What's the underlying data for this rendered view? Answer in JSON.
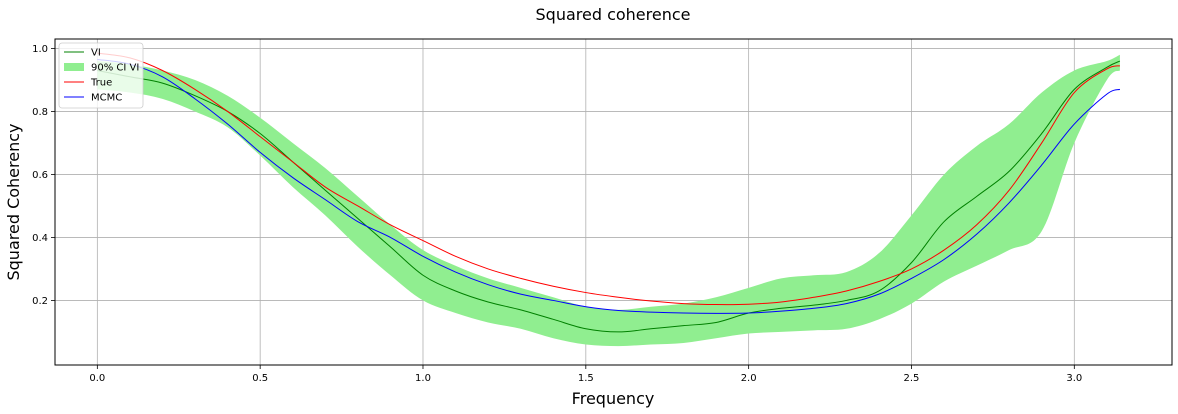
{
  "chart_data": {
    "type": "line",
    "title": "Squared coherence",
    "xlabel": "Frequency",
    "ylabel": "Squared Coherency",
    "xlim": [
      -0.13,
      3.3
    ],
    "ylim": [
      -0.005,
      1.03
    ],
    "x_ticks": [
      0.0,
      0.5,
      1.0,
      1.5,
      2.0,
      2.5,
      3.0
    ],
    "x_tick_labels": [
      "0.0",
      "0.5",
      "1.0",
      "1.5",
      "2.0",
      "2.5",
      "3.0"
    ],
    "y_ticks": [
      0.2,
      0.4,
      0.6,
      0.8,
      1.0
    ],
    "y_tick_labels": [
      "0.2",
      "0.4",
      "0.6",
      "0.8",
      "1.0"
    ],
    "grid": true,
    "legend_position": "upper-left",
    "x": [
      0.0,
      0.1,
      0.2,
      0.3,
      0.4,
      0.5,
      0.6,
      0.7,
      0.8,
      0.9,
      1.0,
      1.1,
      1.2,
      1.3,
      1.4,
      1.5,
      1.6,
      1.7,
      1.8,
      1.9,
      2.0,
      2.1,
      2.2,
      2.3,
      2.4,
      2.5,
      2.6,
      2.7,
      2.8,
      2.9,
      3.0,
      3.1,
      3.14
    ],
    "series": [
      {
        "name": "VI",
        "kind": "line",
        "color": "#008000",
        "values": [
          0.93,
          0.91,
          0.89,
          0.85,
          0.8,
          0.73,
          0.64,
          0.55,
          0.46,
          0.37,
          0.28,
          0.23,
          0.195,
          0.17,
          0.14,
          0.11,
          0.1,
          0.11,
          0.12,
          0.13,
          0.16,
          0.175,
          0.185,
          0.2,
          0.23,
          0.32,
          0.45,
          0.53,
          0.61,
          0.73,
          0.87,
          0.94,
          0.96
        ]
      },
      {
        "name": "90% CI VI",
        "kind": "band",
        "color": "#90ee90",
        "lower": [
          0.87,
          0.86,
          0.84,
          0.8,
          0.75,
          0.66,
          0.56,
          0.47,
          0.37,
          0.28,
          0.2,
          0.16,
          0.13,
          0.11,
          0.08,
          0.06,
          0.055,
          0.06,
          0.065,
          0.08,
          0.095,
          0.1,
          0.105,
          0.11,
          0.14,
          0.19,
          0.26,
          0.31,
          0.36,
          0.42,
          0.7,
          0.9,
          0.93
        ],
        "upper": [
          0.96,
          0.95,
          0.93,
          0.9,
          0.85,
          0.78,
          0.7,
          0.62,
          0.53,
          0.44,
          0.36,
          0.31,
          0.27,
          0.24,
          0.21,
          0.18,
          0.17,
          0.18,
          0.19,
          0.21,
          0.24,
          0.27,
          0.28,
          0.29,
          0.35,
          0.47,
          0.6,
          0.69,
          0.76,
          0.86,
          0.93,
          0.96,
          0.98
        ]
      },
      {
        "name": "True",
        "kind": "line",
        "color": "#ff0000",
        "values": [
          0.985,
          0.97,
          0.93,
          0.87,
          0.8,
          0.72,
          0.64,
          0.56,
          0.5,
          0.44,
          0.39,
          0.34,
          0.3,
          0.27,
          0.245,
          0.225,
          0.21,
          0.198,
          0.19,
          0.187,
          0.188,
          0.195,
          0.21,
          0.23,
          0.26,
          0.3,
          0.36,
          0.44,
          0.55,
          0.7,
          0.86,
          0.935,
          0.945
        ]
      },
      {
        "name": "MCMC",
        "kind": "line",
        "color": "#0000ff",
        "values": [
          0.965,
          0.95,
          0.91,
          0.84,
          0.76,
          0.67,
          0.59,
          0.52,
          0.45,
          0.4,
          0.34,
          0.29,
          0.25,
          0.22,
          0.2,
          0.18,
          0.168,
          0.163,
          0.16,
          0.159,
          0.16,
          0.166,
          0.175,
          0.19,
          0.22,
          0.27,
          0.33,
          0.41,
          0.51,
          0.63,
          0.76,
          0.855,
          0.87
        ]
      }
    ]
  }
}
